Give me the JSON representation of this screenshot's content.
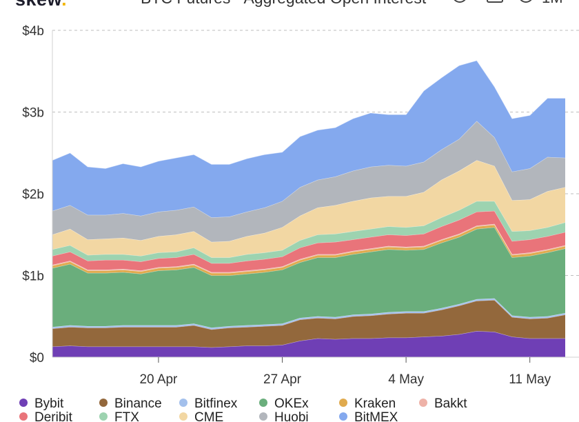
{
  "header": {
    "brand": "skew",
    "brand_dot": ".",
    "title": "BTC Futures - Aggregated Open Interest",
    "range_label": "1M"
  },
  "chart_data": {
    "type": "area",
    "stacked": true,
    "title": "BTC Futures - Aggregated Open Interest",
    "xlabel": "",
    "ylabel": "",
    "ylim": [
      0,
      4
    ],
    "y_unit": "billions USD",
    "y_ticks": [
      0,
      1,
      2,
      3,
      4
    ],
    "y_tick_labels": [
      "$0",
      "$1b",
      "$2b",
      "$3b",
      "$4b"
    ],
    "x_ticks": [
      "2020-04-20",
      "2020-04-27",
      "2020-05-04",
      "2020-05-11"
    ],
    "x_tick_labels": [
      "20 Apr",
      "27 Apr",
      "4 May",
      "11 May"
    ],
    "grid": "horizontal-dashed",
    "legend_position": "bottom",
    "x": [
      "2020-04-14",
      "2020-04-15",
      "2020-04-16",
      "2020-04-17",
      "2020-04-18",
      "2020-04-19",
      "2020-04-20",
      "2020-04-21",
      "2020-04-22",
      "2020-04-23",
      "2020-04-24",
      "2020-04-25",
      "2020-04-26",
      "2020-04-27",
      "2020-04-28",
      "2020-04-29",
      "2020-04-30",
      "2020-05-01",
      "2020-05-02",
      "2020-05-03",
      "2020-05-04",
      "2020-05-05",
      "2020-05-06",
      "2020-05-07",
      "2020-05-08",
      "2020-05-09",
      "2020-05-10",
      "2020-05-11",
      "2020-05-12",
      "2020-05-13"
    ],
    "series": [
      {
        "name": "Bybit",
        "color": "#6f3fb5",
        "values": [
          0.13,
          0.14,
          0.13,
          0.13,
          0.13,
          0.13,
          0.13,
          0.13,
          0.13,
          0.12,
          0.13,
          0.14,
          0.14,
          0.15,
          0.2,
          0.23,
          0.22,
          0.23,
          0.23,
          0.24,
          0.24,
          0.25,
          0.26,
          0.28,
          0.32,
          0.31,
          0.25,
          0.23,
          0.23,
          0.23
        ]
      },
      {
        "name": "Binance",
        "color": "#93683c",
        "values": [
          0.22,
          0.23,
          0.23,
          0.23,
          0.24,
          0.24,
          0.24,
          0.24,
          0.26,
          0.22,
          0.23,
          0.23,
          0.24,
          0.24,
          0.26,
          0.25,
          0.25,
          0.27,
          0.28,
          0.29,
          0.3,
          0.29,
          0.32,
          0.35,
          0.37,
          0.39,
          0.24,
          0.24,
          0.25,
          0.29
        ]
      },
      {
        "name": "Bitfinex",
        "color": "#a3c0ec",
        "values": [
          0.02,
          0.02,
          0.02,
          0.02,
          0.02,
          0.02,
          0.02,
          0.02,
          0.02,
          0.02,
          0.02,
          0.02,
          0.02,
          0.02,
          0.02,
          0.02,
          0.02,
          0.02,
          0.02,
          0.02,
          0.02,
          0.02,
          0.02,
          0.02,
          0.02,
          0.02,
          0.02,
          0.02,
          0.02,
          0.02
        ]
      },
      {
        "name": "OKEx",
        "color": "#6aae7c",
        "values": [
          0.72,
          0.75,
          0.65,
          0.65,
          0.65,
          0.63,
          0.67,
          0.68,
          0.69,
          0.64,
          0.62,
          0.63,
          0.64,
          0.66,
          0.68,
          0.72,
          0.73,
          0.74,
          0.76,
          0.77,
          0.75,
          0.76,
          0.8,
          0.82,
          0.86,
          0.87,
          0.71,
          0.75,
          0.78,
          0.79
        ]
      },
      {
        "name": "Kraken",
        "color": "#e0aa4e",
        "values": [
          0.03,
          0.03,
          0.03,
          0.03,
          0.03,
          0.03,
          0.03,
          0.03,
          0.03,
          0.03,
          0.03,
          0.03,
          0.03,
          0.03,
          0.03,
          0.03,
          0.03,
          0.03,
          0.03,
          0.03,
          0.03,
          0.03,
          0.03,
          0.03,
          0.03,
          0.03,
          0.03,
          0.03,
          0.03,
          0.03
        ]
      },
      {
        "name": "Bakkt",
        "color": "#eeb2a8",
        "values": [
          0.01,
          0.01,
          0.01,
          0.01,
          0.01,
          0.01,
          0.01,
          0.01,
          0.01,
          0.01,
          0.01,
          0.01,
          0.01,
          0.01,
          0.01,
          0.01,
          0.01,
          0.01,
          0.01,
          0.01,
          0.01,
          0.01,
          0.01,
          0.01,
          0.01,
          0.01,
          0.01,
          0.01,
          0.01,
          0.01
        ]
      },
      {
        "name": "Deribit",
        "color": "#e9747a",
        "values": [
          0.11,
          0.11,
          0.11,
          0.12,
          0.11,
          0.11,
          0.11,
          0.11,
          0.12,
          0.11,
          0.11,
          0.12,
          0.12,
          0.12,
          0.14,
          0.14,
          0.15,
          0.14,
          0.14,
          0.14,
          0.14,
          0.15,
          0.16,
          0.17,
          0.17,
          0.16,
          0.16,
          0.16,
          0.16,
          0.16
        ]
      },
      {
        "name": "FTX",
        "color": "#9dd3b0",
        "values": [
          0.08,
          0.08,
          0.07,
          0.07,
          0.07,
          0.07,
          0.07,
          0.07,
          0.08,
          0.07,
          0.07,
          0.08,
          0.08,
          0.08,
          0.09,
          0.1,
          0.1,
          0.1,
          0.1,
          0.1,
          0.1,
          0.1,
          0.11,
          0.12,
          0.13,
          0.12,
          0.12,
          0.11,
          0.11,
          0.12
        ]
      },
      {
        "name": "CME",
        "color": "#f2d7a3",
        "values": [
          0.18,
          0.2,
          0.19,
          0.19,
          0.2,
          0.19,
          0.2,
          0.21,
          0.2,
          0.19,
          0.2,
          0.22,
          0.24,
          0.28,
          0.3,
          0.33,
          0.35,
          0.37,
          0.38,
          0.37,
          0.38,
          0.41,
          0.46,
          0.48,
          0.5,
          0.43,
          0.38,
          0.38,
          0.44,
          0.43
        ]
      },
      {
        "name": "Huobi",
        "color": "#b2b6bc",
        "values": [
          0.29,
          0.29,
          0.3,
          0.29,
          0.3,
          0.3,
          0.3,
          0.3,
          0.3,
          0.3,
          0.3,
          0.3,
          0.31,
          0.32,
          0.35,
          0.34,
          0.35,
          0.37,
          0.38,
          0.38,
          0.37,
          0.37,
          0.37,
          0.39,
          0.48,
          0.35,
          0.35,
          0.38,
          0.42,
          0.36
        ]
      },
      {
        "name": "BitMEX",
        "color": "#84a9ee",
        "values": [
          0.62,
          0.64,
          0.59,
          0.57,
          0.61,
          0.6,
          0.62,
          0.64,
          0.64,
          0.65,
          0.64,
          0.65,
          0.65,
          0.6,
          0.62,
          0.61,
          0.6,
          0.64,
          0.66,
          0.62,
          0.63,
          0.87,
          0.88,
          0.9,
          0.74,
          0.62,
          0.65,
          0.65,
          0.72,
          0.73
        ]
      }
    ]
  }
}
